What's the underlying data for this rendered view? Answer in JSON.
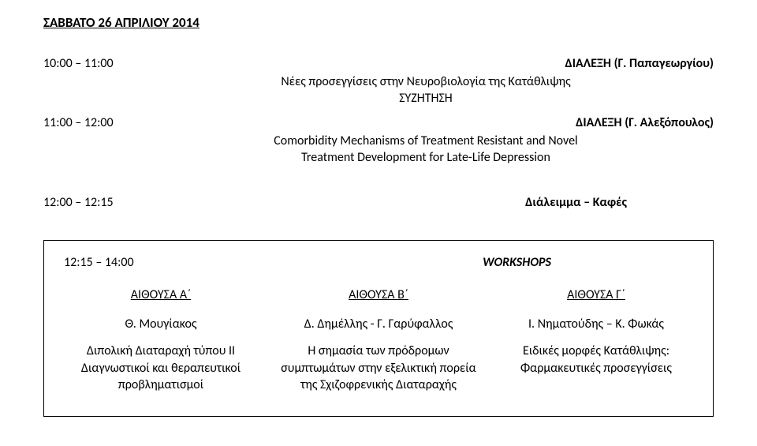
{
  "header": "ΣΑΒΒΑΤΟ 26 ΑΠΡΙΛΙΟΥ 2014",
  "slot1": {
    "time": "10:00 – 11:00",
    "title": "ΔΙΑΛΕΞΗ (Γ. Παπαγεωργίου)",
    "line1": "Νέες προσεγγίσεις στην Νευροβιολογία της Κατάθλιψης",
    "line2": "ΣΥΖΗΤΗΣΗ"
  },
  "slot2": {
    "time": "11:00 – 12:00",
    "title": "ΔΙΑΛΕΞΗ (Γ. Αλεξόπουλος)",
    "line1": "Comorbidity Mechanisms of Treatment Resistant and Novel",
    "line2": "Treatment Development for Late-Life Depression"
  },
  "break": {
    "time": "12:00 – 12:15",
    "label": "Διάλειμμα – Καφές"
  },
  "workshops": {
    "time": "12:15 – 14:00",
    "label": "WORKSHOPS",
    "halls": [
      "ΑΙΘΟΥΣΑ  Α΄",
      "ΑΙΘΟΥΣΑ Β΄",
      "ΑΙΘΟΥΣΑ Γ΄"
    ],
    "speakers": [
      "Θ. Μουγίακος",
      "Δ. Δημέλλης - Γ. Γαρύφαλλος",
      "Ι. Νηματούδης – Κ. Φωκάς"
    ],
    "desc": [
      "Διπολική Διαταραχή τύπου ΙΙ Διαγνωστικοί και θεραπευτικοί προβληματισμοί",
      "Η σημασία των πρόδρομων συμπτωμάτων στην εξελικτική πορεία της Σχιζοφρενικής Διαταραχής",
      "Ειδικές μορφές Κατάθλιψης: Φαρμακευτικές προσεγγίσεις"
    ]
  }
}
